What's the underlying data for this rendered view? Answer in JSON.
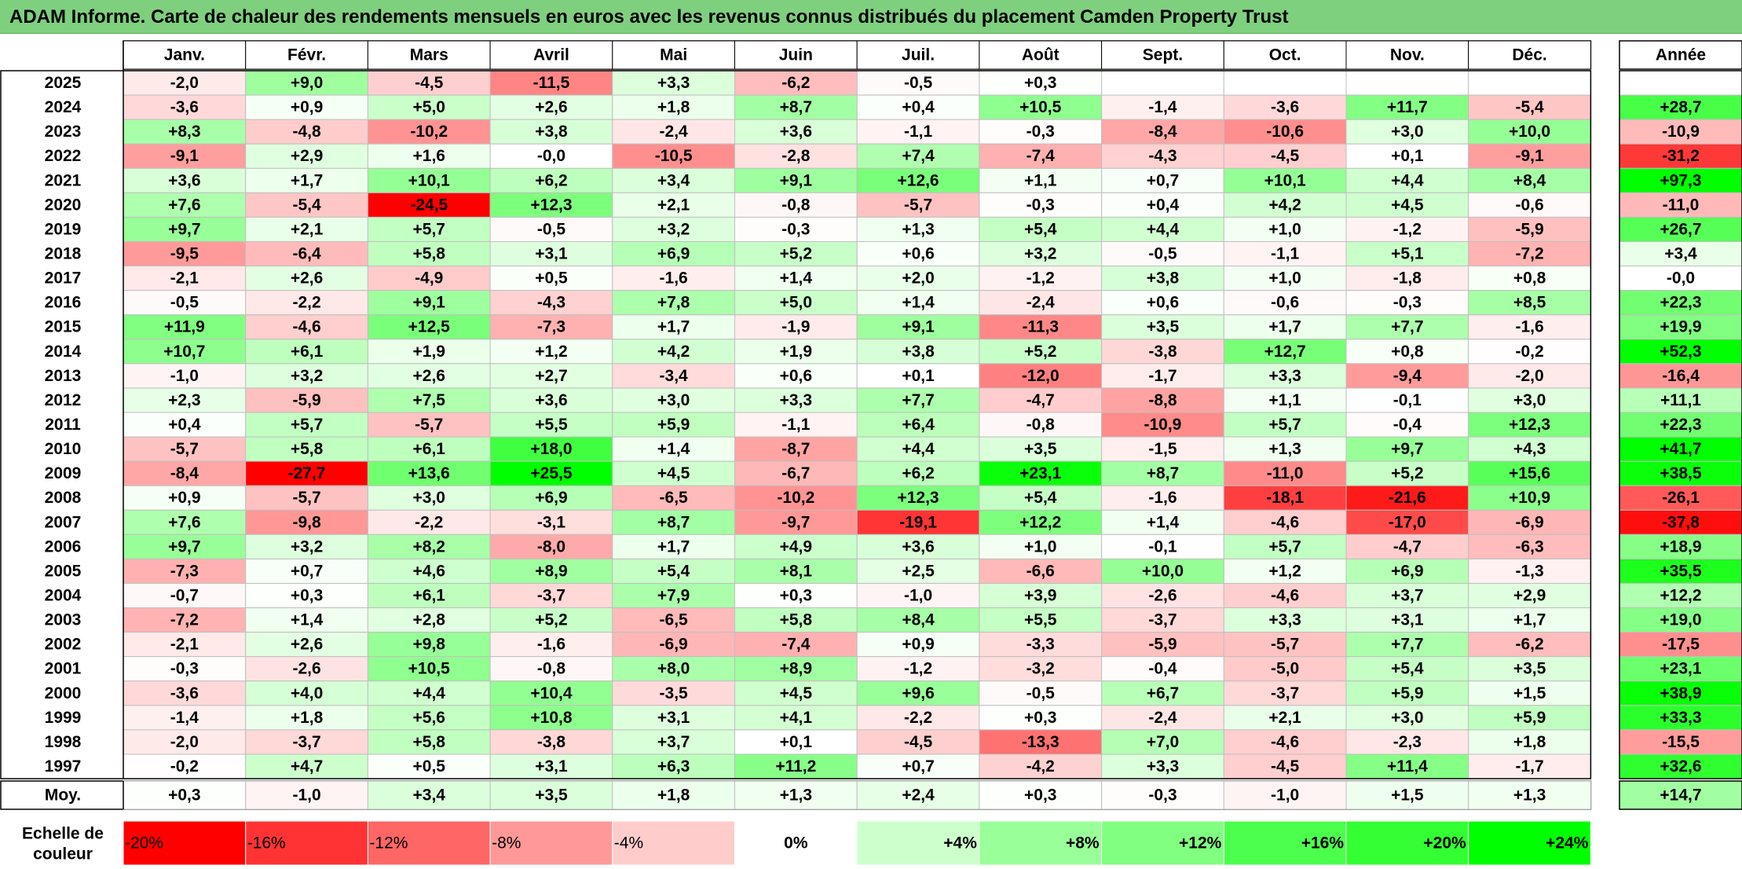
{
  "title": "ADAM Informe. Carte de chaleur des rendements mensuels en euros avec les revenus connus distribués du placement Camden Property Trust",
  "chart_data": {
    "type": "heatmap",
    "months": [
      "Janv.",
      "Févr.",
      "Mars",
      "Avril",
      "Mai",
      "Juin",
      "Juil.",
      "Août",
      "Sept.",
      "Oct.",
      "Nov.",
      "Déc."
    ],
    "year_header": "Année",
    "rows": [
      {
        "year": "2025",
        "values": [
          "-2,0",
          "+9,0",
          "-4,5",
          "-11,5",
          "+3,3",
          "-6,2",
          "-0,5",
          "+0,3",
          "",
          "",
          "",
          ""
        ],
        "annual": ""
      },
      {
        "year": "2024",
        "values": [
          "-3,6",
          "+0,9",
          "+5,0",
          "+2,6",
          "+1,8",
          "+8,7",
          "+0,4",
          "+10,5",
          "-1,4",
          "-3,6",
          "+11,7",
          "-5,4"
        ],
        "annual": "+28,7"
      },
      {
        "year": "2023",
        "values": [
          "+8,3",
          "-4,8",
          "-10,2",
          "+3,8",
          "-2,4",
          "+3,6",
          "-1,1",
          "-0,3",
          "-8,4",
          "-10,6",
          "+3,0",
          "+10,0"
        ],
        "annual": "-10,9"
      },
      {
        "year": "2022",
        "values": [
          "-9,1",
          "+2,9",
          "+1,6",
          "-0,0",
          "-10,5",
          "-2,8",
          "+7,4",
          "-7,4",
          "-4,3",
          "-4,5",
          "+0,1",
          "-9,1"
        ],
        "annual": "-31,2"
      },
      {
        "year": "2021",
        "values": [
          "+3,6",
          "+1,7",
          "+10,1",
          "+6,2",
          "+3,4",
          "+9,1",
          "+12,6",
          "+1,1",
          "+0,7",
          "+10,1",
          "+4,4",
          "+8,4"
        ],
        "annual": "+97,3"
      },
      {
        "year": "2020",
        "values": [
          "+7,6",
          "-5,4",
          "-24,5",
          "+12,3",
          "+2,1",
          "-0,8",
          "-5,7",
          "-0,3",
          "+0,4",
          "+4,2",
          "+4,5",
          "-0,6"
        ],
        "annual": "-11,0"
      },
      {
        "year": "2019",
        "values": [
          "+9,7",
          "+2,1",
          "+5,7",
          "-0,5",
          "+3,2",
          "-0,3",
          "+1,3",
          "+5,4",
          "+4,4",
          "+1,0",
          "-1,2",
          "-5,9"
        ],
        "annual": "+26,7"
      },
      {
        "year": "2018",
        "values": [
          "-9,5",
          "-6,4",
          "+5,8",
          "+3,1",
          "+6,9",
          "+5,2",
          "+0,6",
          "+3,2",
          "-0,5",
          "-1,1",
          "+5,1",
          "-7,2"
        ],
        "annual": "+3,4"
      },
      {
        "year": "2017",
        "values": [
          "-2,1",
          "+2,6",
          "-4,9",
          "+0,5",
          "-1,6",
          "+1,4",
          "+2,0",
          "-1,2",
          "+3,8",
          "+1,0",
          "-1,8",
          "+0,8"
        ],
        "annual": "-0,0"
      },
      {
        "year": "2016",
        "values": [
          "-0,5",
          "-2,2",
          "+9,1",
          "-4,3",
          "+7,8",
          "+5,0",
          "+1,4",
          "-2,4",
          "+0,6",
          "-0,6",
          "-0,3",
          "+8,5"
        ],
        "annual": "+22,3"
      },
      {
        "year": "2015",
        "values": [
          "+11,9",
          "-4,6",
          "+12,5",
          "-7,3",
          "+1,7",
          "-1,9",
          "+9,1",
          "-11,3",
          "+3,5",
          "+1,7",
          "+7,7",
          "-1,6"
        ],
        "annual": "+19,9"
      },
      {
        "year": "2014",
        "values": [
          "+10,7",
          "+6,1",
          "+1,9",
          "+1,2",
          "+4,2",
          "+1,9",
          "+3,8",
          "+5,2",
          "-3,8",
          "+12,7",
          "+0,8",
          "-0,2"
        ],
        "annual": "+52,3"
      },
      {
        "year": "2013",
        "values": [
          "-1,0",
          "+3,2",
          "+2,6",
          "+2,7",
          "-3,4",
          "+0,6",
          "+0,1",
          "-12,0",
          "-1,7",
          "+3,3",
          "-9,4",
          "-2,0"
        ],
        "annual": "-16,4"
      },
      {
        "year": "2012",
        "values": [
          "+2,3",
          "-5,9",
          "+7,5",
          "+3,6",
          "+3,0",
          "+3,3",
          "+7,7",
          "-4,7",
          "-8,8",
          "+1,1",
          "-0,1",
          "+3,0"
        ],
        "annual": "+11,1"
      },
      {
        "year": "2011",
        "values": [
          "+0,4",
          "+5,7",
          "-5,7",
          "+5,5",
          "+5,9",
          "-1,1",
          "+6,4",
          "-0,8",
          "-10,9",
          "+5,7",
          "-0,4",
          "+12,3"
        ],
        "annual": "+22,3"
      },
      {
        "year": "2010",
        "values": [
          "-5,7",
          "+5,8",
          "+6,1",
          "+18,0",
          "+1,4",
          "-8,7",
          "+4,4",
          "+3,5",
          "-1,5",
          "+1,3",
          "+9,7",
          "+4,3"
        ],
        "annual": "+41,7"
      },
      {
        "year": "2009",
        "values": [
          "-8,4",
          "-27,7",
          "+13,6",
          "+25,5",
          "+4,5",
          "-6,7",
          "+6,2",
          "+23,1",
          "+8,7",
          "-11,0",
          "+5,2",
          "+15,6"
        ],
        "annual": "+38,5"
      },
      {
        "year": "2008",
        "values": [
          "+0,9",
          "-5,7",
          "+3,0",
          "+6,9",
          "-6,5",
          "-10,2",
          "+12,3",
          "+5,4",
          "-1,6",
          "-18,1",
          "-21,6",
          "+10,9"
        ],
        "annual": "-26,1"
      },
      {
        "year": "2007",
        "values": [
          "+7,6",
          "-9,8",
          "-2,2",
          "-3,1",
          "+8,7",
          "-9,7",
          "-19,1",
          "+12,2",
          "+1,4",
          "-4,6",
          "-17,0",
          "-6,9"
        ],
        "annual": "-37,8"
      },
      {
        "year": "2006",
        "values": [
          "+9,7",
          "+3,2",
          "+8,2",
          "-8,0",
          "+1,7",
          "+4,9",
          "+3,6",
          "+1,0",
          "-0,1",
          "+5,7",
          "-4,7",
          "-6,3"
        ],
        "annual": "+18,9"
      },
      {
        "year": "2005",
        "values": [
          "-7,3",
          "+0,7",
          "+4,6",
          "+8,9",
          "+5,4",
          "+8,1",
          "+2,5",
          "-6,6",
          "+10,0",
          "+1,2",
          "+6,9",
          "-1,3"
        ],
        "annual": "+35,5"
      },
      {
        "year": "2004",
        "values": [
          "-0,7",
          "+0,3",
          "+6,1",
          "-3,7",
          "+7,9",
          "+0,3",
          "-1,0",
          "+3,9",
          "-2,6",
          "-4,6",
          "+3,7",
          "+2,9"
        ],
        "annual": "+12,2"
      },
      {
        "year": "2003",
        "values": [
          "-7,2",
          "+1,4",
          "+2,8",
          "+5,2",
          "-6,5",
          "+5,8",
          "+8,4",
          "+5,5",
          "-3,7",
          "+3,3",
          "+3,1",
          "+1,7"
        ],
        "annual": "+19,0"
      },
      {
        "year": "2002",
        "values": [
          "-2,1",
          "+2,6",
          "+9,8",
          "-1,6",
          "-6,9",
          "-7,4",
          "+0,9",
          "-3,3",
          "-5,9",
          "-5,7",
          "+7,7",
          "-6,2"
        ],
        "annual": "-17,5"
      },
      {
        "year": "2001",
        "values": [
          "-0,3",
          "-2,6",
          "+10,5",
          "-0,8",
          "+8,0",
          "+8,9",
          "-1,2",
          "-3,2",
          "-0,4",
          "-5,0",
          "+5,4",
          "+3,5"
        ],
        "annual": "+23,1"
      },
      {
        "year": "2000",
        "values": [
          "-3,6",
          "+4,0",
          "+4,4",
          "+10,4",
          "-3,5",
          "+4,5",
          "+9,6",
          "-0,5",
          "+6,7",
          "-3,7",
          "+5,9",
          "+1,5"
        ],
        "annual": "+38,9"
      },
      {
        "year": "1999",
        "values": [
          "-1,4",
          "+1,8",
          "+5,6",
          "+10,8",
          "+3,1",
          "+4,1",
          "-2,2",
          "+0,3",
          "-2,4",
          "+2,1",
          "+3,0",
          "+5,9"
        ],
        "annual": "+33,3"
      },
      {
        "year": "1998",
        "values": [
          "-2,0",
          "-3,7",
          "+5,8",
          "-3,8",
          "+3,7",
          "+0,1",
          "-4,5",
          "-13,3",
          "+7,0",
          "-4,6",
          "-2,3",
          "+1,8"
        ],
        "annual": "-15,5"
      },
      {
        "year": "1997",
        "values": [
          "-0,2",
          "+4,7",
          "+0,5",
          "+3,1",
          "+6,3",
          "+11,2",
          "+0,7",
          "-4,2",
          "+3,3",
          "-4,5",
          "+11,4",
          "-1,7"
        ],
        "annual": "+32,6"
      }
    ],
    "average": {
      "label": "Moy.",
      "values": [
        "+0,3",
        "-1,0",
        "+3,4",
        "+3,5",
        "+1,8",
        "+1,3",
        "+2,4",
        "+0,3",
        "-0,3",
        "-1,0",
        "+1,5",
        "+1,3"
      ],
      "annual": "+14,7"
    },
    "scale": {
      "label_line1": "Echelle de",
      "label_line2": "couleur",
      "steps": [
        {
          "label": "-20%",
          "value": -20,
          "color": "#ff0000"
        },
        {
          "label": "-16%",
          "value": -16,
          "color": "#ff3333"
        },
        {
          "label": "-12%",
          "value": -12,
          "color": "#ff6666"
        },
        {
          "label": "-8%",
          "value": -8,
          "color": "#ff9999"
        },
        {
          "label": "-4%",
          "value": -4,
          "color": "#ffcccc"
        },
        {
          "label": "0%",
          "value": 0,
          "color": "#ffffff"
        },
        {
          "label": "+4%",
          "value": 4,
          "color": "#ccffcc"
        },
        {
          "label": "+8%",
          "value": 8,
          "color": "#99ff99"
        },
        {
          "label": "+12%",
          "value": 12,
          "color": "#80ff80"
        },
        {
          "label": "+16%",
          "value": 16,
          "color": "#4dff4d"
        },
        {
          "label": "+20%",
          "value": 20,
          "color": "#33ff33"
        },
        {
          "label": "+24%",
          "value": 24,
          "color": "#00ff00"
        }
      ]
    },
    "colors": {
      "negative_max": "#ff0000",
      "zero": "#ffffff",
      "positive_max": "#00ff00",
      "title_bar": "#7ed07e"
    }
  }
}
